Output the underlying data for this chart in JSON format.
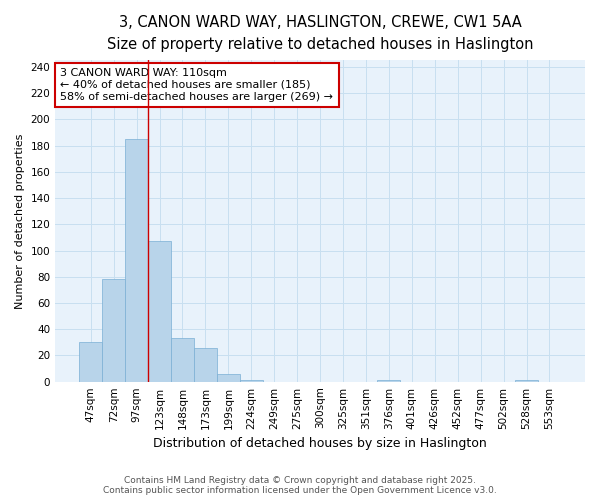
{
  "title1": "3, CANON WARD WAY, HASLINGTON, CREWE, CW1 5AA",
  "title2": "Size of property relative to detached houses in Haslington",
  "xlabel": "Distribution of detached houses by size in Haslington",
  "ylabel": "Number of detached properties",
  "categories": [
    "47sqm",
    "72sqm",
    "97sqm",
    "123sqm",
    "148sqm",
    "173sqm",
    "199sqm",
    "224sqm",
    "249sqm",
    "275sqm",
    "300sqm",
    "325sqm",
    "351sqm",
    "376sqm",
    "401sqm",
    "426sqm",
    "452sqm",
    "477sqm",
    "502sqm",
    "528sqm",
    "553sqm"
  ],
  "values": [
    30,
    78,
    185,
    107,
    33,
    26,
    6,
    1,
    0,
    0,
    0,
    0,
    0,
    1,
    0,
    0,
    0,
    0,
    0,
    1,
    0
  ],
  "bar_color": "#b8d4ea",
  "bar_edge_color": "#7aafd4",
  "grid_color": "#c8dff0",
  "background_color": "#e8f2fb",
  "red_line_x": 2.5,
  "annotation_text": "3 CANON WARD WAY: 110sqm\n← 40% of detached houses are smaller (185)\n58% of semi-detached houses are larger (269) →",
  "ylim": [
    0,
    245
  ],
  "yticks": [
    0,
    20,
    40,
    60,
    80,
    100,
    120,
    140,
    160,
    180,
    200,
    220,
    240
  ],
  "footer1": "Contains HM Land Registry data © Crown copyright and database right 2025.",
  "footer2": "Contains public sector information licensed under the Open Government Licence v3.0.",
  "title1_fontsize": 10.5,
  "title2_fontsize": 9,
  "ylabel_fontsize": 8,
  "xlabel_fontsize": 9,
  "tick_fontsize": 7.5,
  "footer_fontsize": 6.5
}
